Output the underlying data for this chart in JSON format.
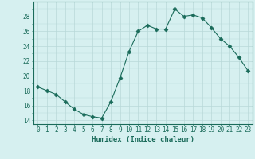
{
  "x": [
    0,
    1,
    2,
    3,
    4,
    5,
    6,
    7,
    8,
    9,
    10,
    11,
    12,
    13,
    14,
    15,
    16,
    17,
    18,
    19,
    20,
    21,
    22,
    23
  ],
  "y": [
    18.5,
    18.0,
    17.5,
    16.5,
    15.5,
    14.8,
    14.5,
    14.3,
    16.5,
    19.7,
    23.3,
    26.0,
    26.8,
    26.3,
    26.3,
    29.0,
    28.0,
    28.2,
    27.8,
    26.5,
    25.0,
    24.0,
    22.5,
    20.7
  ],
  "line_color": "#1a6b5a",
  "marker": "D",
  "marker_size": 2.5,
  "bg_color": "#d6f0f0",
  "grid_major_color": "#b8d8d8",
  "grid_minor_color": "#c8e4e4",
  "tick_color": "#1a6b5a",
  "xlabel": "Humidex (Indice chaleur)",
  "ylim": [
    13.5,
    30.0
  ],
  "yticks": [
    14,
    16,
    18,
    20,
    22,
    24,
    26,
    28
  ],
  "xticks": [
    0,
    1,
    2,
    3,
    4,
    5,
    6,
    7,
    8,
    9,
    10,
    11,
    12,
    13,
    14,
    15,
    16,
    17,
    18,
    19,
    20,
    21,
    22,
    23
  ],
  "label_fontsize": 6.5,
  "tick_fontsize": 5.5
}
